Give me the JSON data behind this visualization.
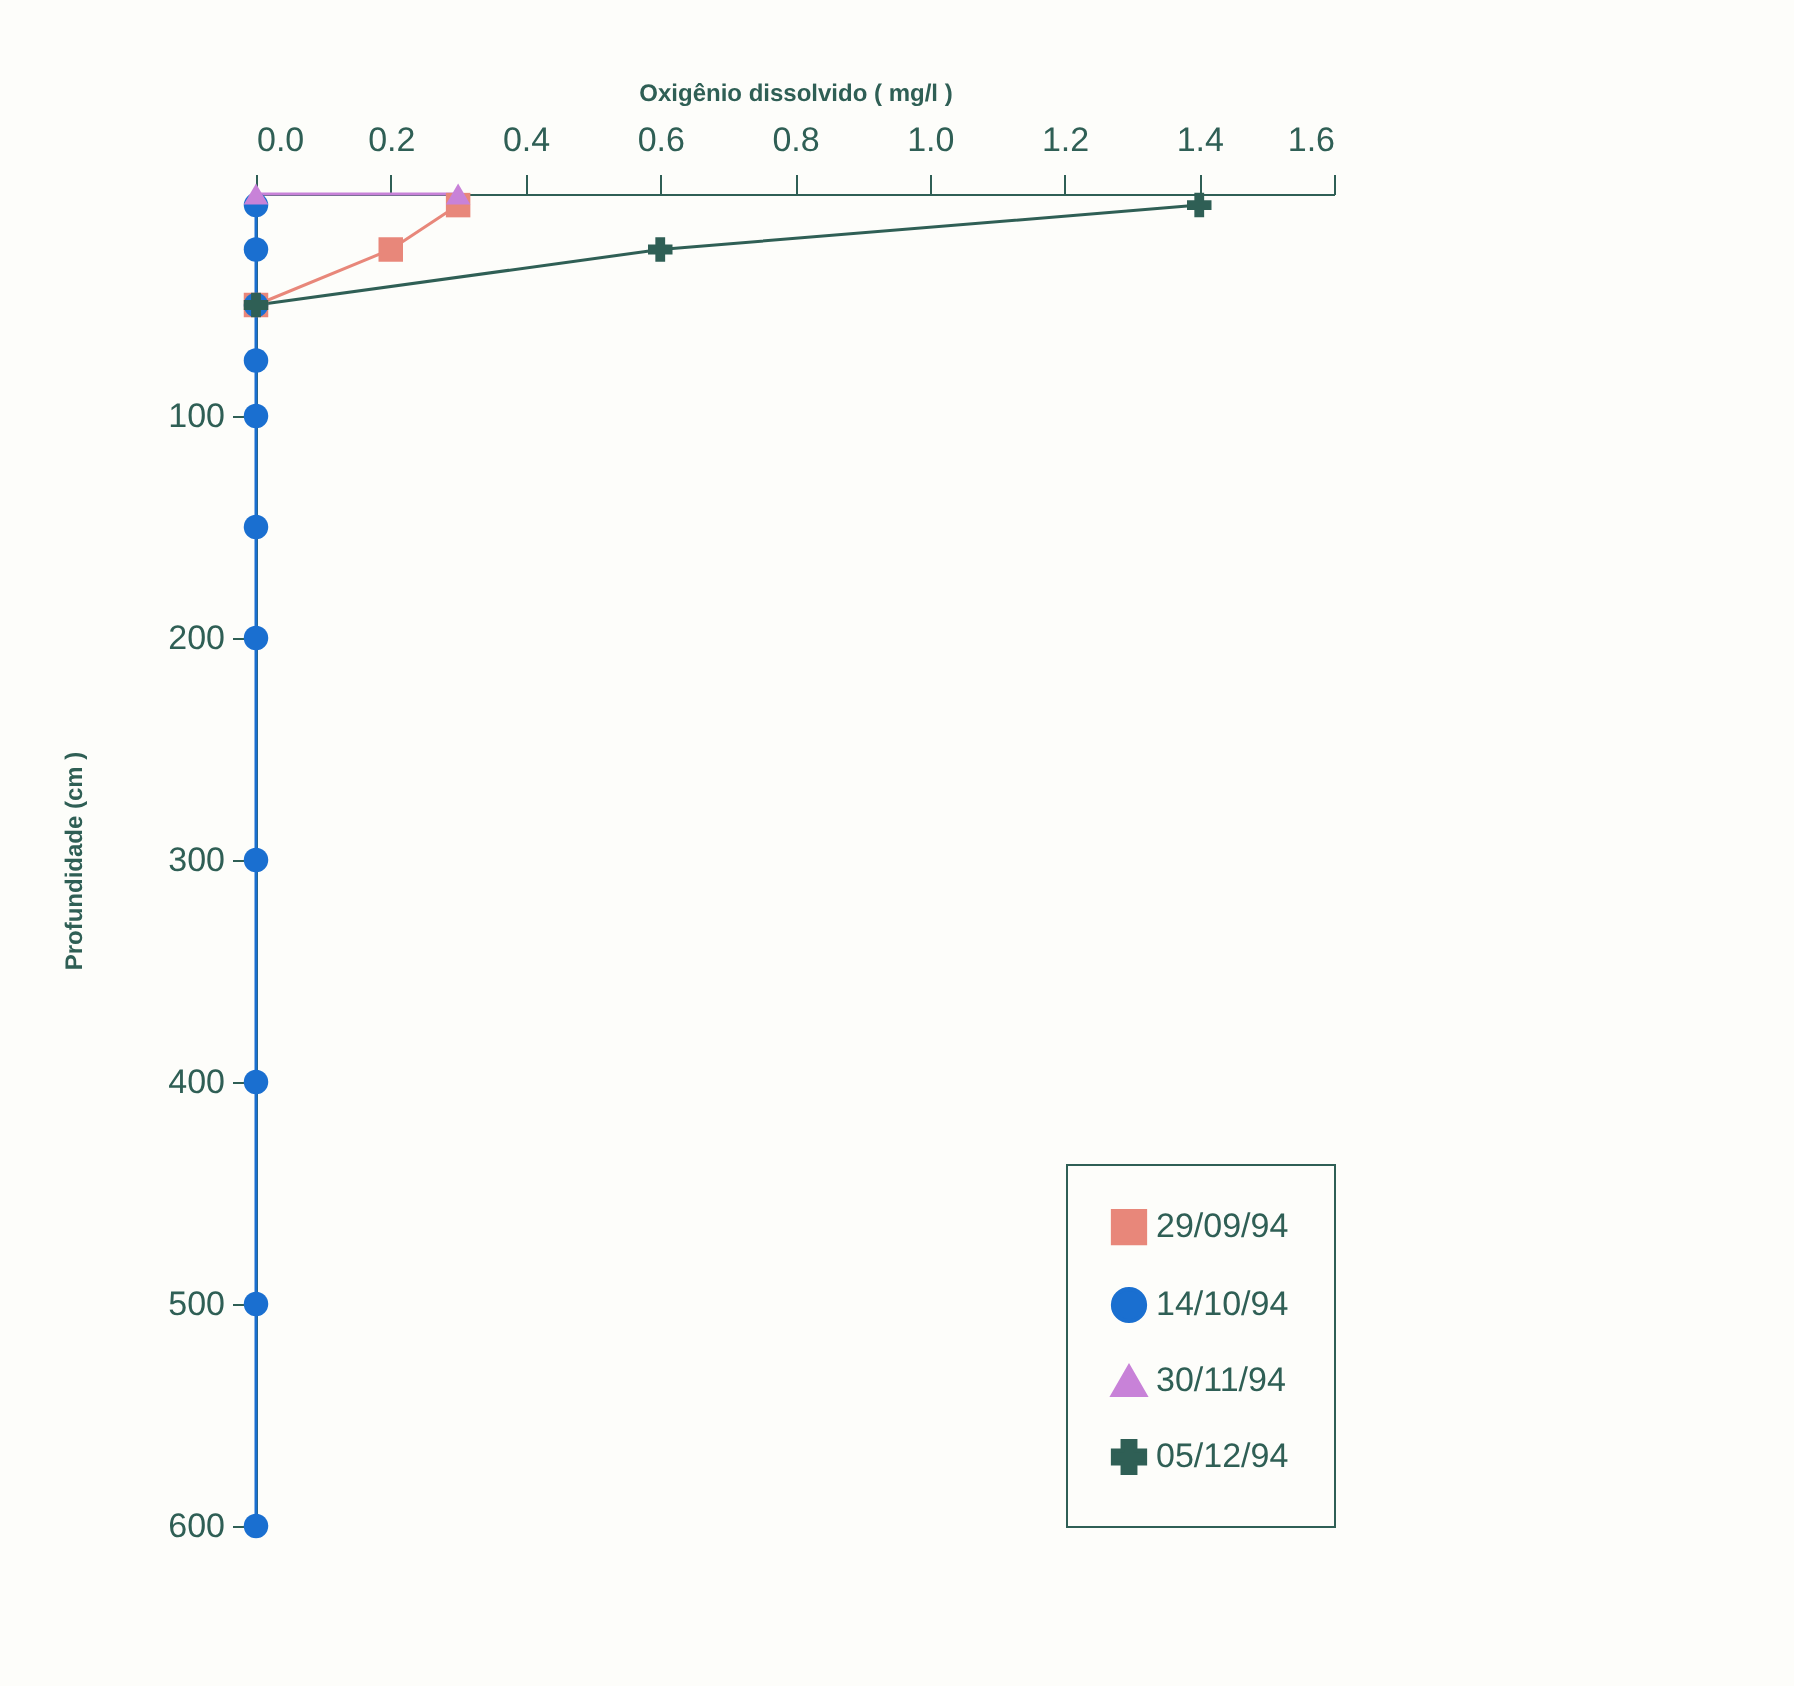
{
  "chart_data": {
    "type": "line",
    "xlabel": "Oxigênio dissolvido ( mg/l )",
    "ylabel": "Profundidade (cm )",
    "xlim": [
      0,
      1.6
    ],
    "xticks": [
      {
        "value": 0,
        "label": "0.0"
      },
      0.2,
      0.4,
      0.6,
      0.8,
      {
        "value": 1,
        "label": "1.0"
      },
      1.2,
      1.4,
      1.6
    ],
    "ylim": [
      600,
      0
    ],
    "yticks": [
      100,
      200,
      300,
      400,
      500,
      600
    ],
    "grid": false,
    "legend": "bottom right",
    "series": [
      {
        "name": "29/09/94",
        "color": "#e8877a",
        "marker": "square",
        "x": [
          0.3,
          0.2,
          0
        ],
        "values": [
          5,
          25,
          50
        ]
      },
      {
        "name": "14/10/94",
        "color": "#1a6fd0",
        "marker": "circle",
        "x": [
          0,
          0,
          0,
          0,
          0,
          0,
          0,
          0,
          0,
          0,
          0
        ],
        "values": [
          5,
          25,
          50,
          75,
          100,
          150,
          200,
          300,
          400,
          500,
          600
        ]
      },
      {
        "name": "30/11/94",
        "color": "#c882d8",
        "marker": "triangle",
        "x": [
          0,
          0.3
        ],
        "values": [
          0,
          0
        ]
      },
      {
        "name": "05/12/94",
        "color": "#2f5f55",
        "marker": "cross",
        "x": [
          1.4,
          0.6,
          0
        ],
        "values": [
          5,
          25,
          50
        ]
      }
    ]
  }
}
